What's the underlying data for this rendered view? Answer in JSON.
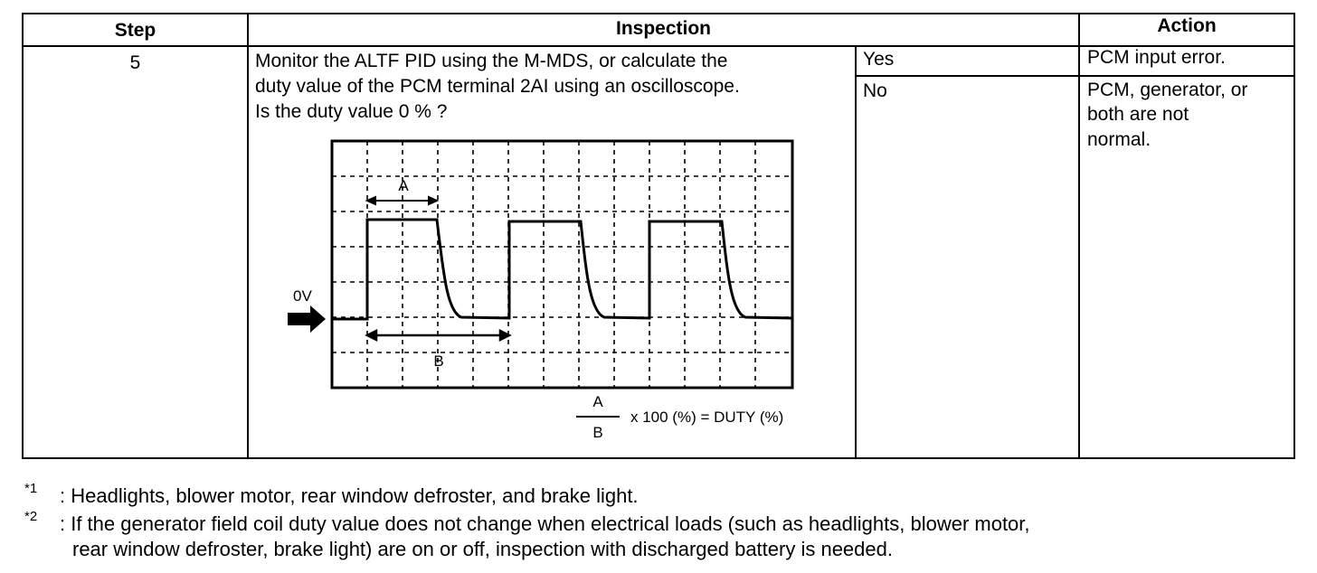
{
  "table": {
    "headers": {
      "step": "Step",
      "inspection": "Inspection",
      "action": "Action"
    },
    "row": {
      "step": "5",
      "inspection_lines": [
        "Monitor the ALTF PID using the M-MDS, or calculate the",
        "duty value of the PCM terminal 2AI using an oscilloscope.",
        "Is the duty value 0 % ?"
      ],
      "answers": [
        {
          "answer": "Yes",
          "action": "PCM input error."
        },
        {
          "answer": "No",
          "action_lines": [
            "PCM, generator, or",
            "both are not",
            "normal."
          ]
        }
      ]
    }
  },
  "waveform": {
    "label_a": "A",
    "label_b": "B",
    "zero_label": "0V",
    "formula_numerator": "A",
    "formula_denominator": "B",
    "formula_text": "x 100 (%) = DUTY (%)"
  },
  "footnotes": [
    {
      "mark": "*1",
      "lines": [
        ": Headlights, blower motor, rear window defroster, and brake light."
      ]
    },
    {
      "mark": "*2",
      "lines": [
        ": If the generator field coil duty value does not change when electrical loads (such as headlights, blower motor,",
        "rear window defroster, brake light) are on or off, inspection with discharged battery is needed."
      ]
    }
  ]
}
